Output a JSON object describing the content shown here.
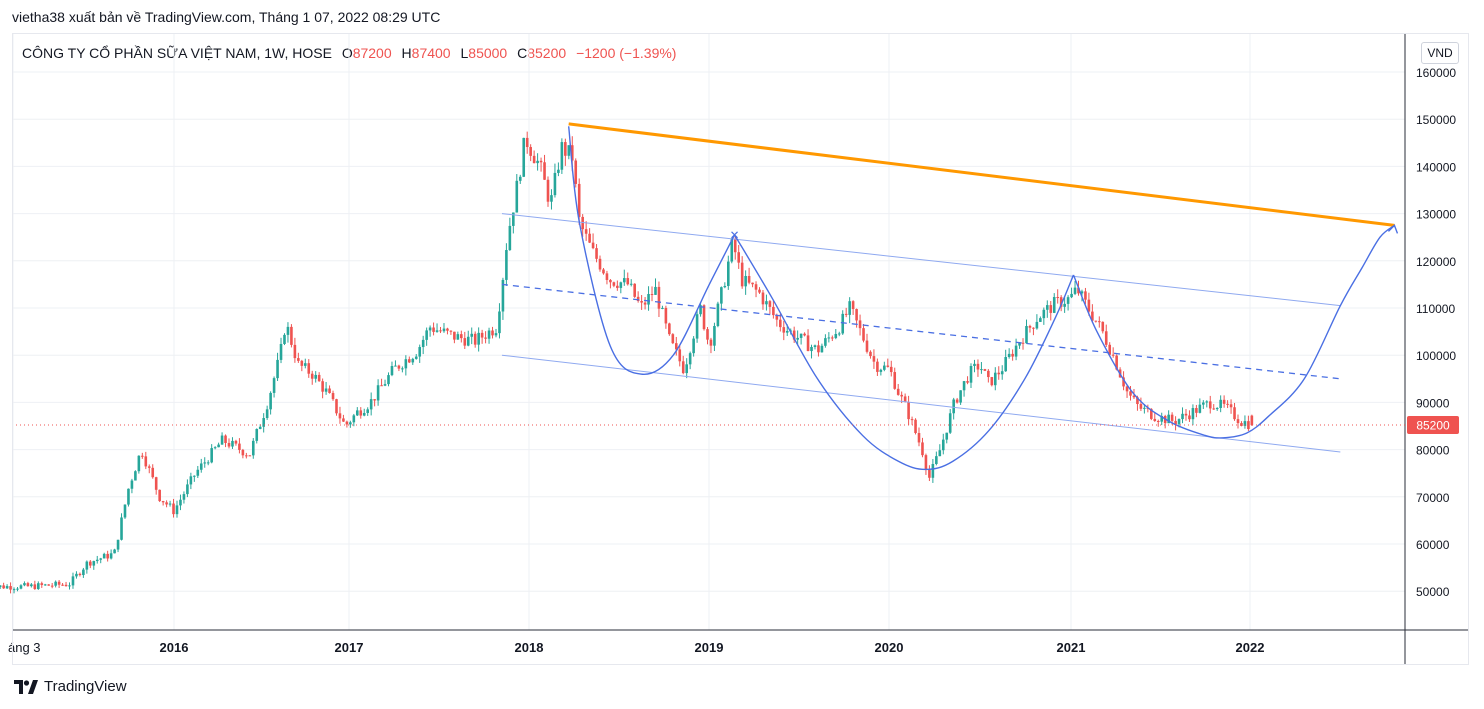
{
  "header": {
    "publisher_line": "vietha38 xuất bản về TradingView.com, Tháng 1 07, 2022 08:29 UTC"
  },
  "legend": {
    "symbol": "CÔNG TY CỔ PHẦN SỮA VIỆT NAM, 1W, HOSE",
    "o_label": "O",
    "o_value": "87200",
    "h_label": "H",
    "h_value": "87400",
    "l_label": "L",
    "l_value": "85000",
    "c_label": "C",
    "c_value": "85200",
    "change": "−1200 (−1.39%)"
  },
  "currency": "VND",
  "footer": {
    "brand": "TradingView",
    "logo_icon": "tradingview-logo-icon"
  },
  "colors": {
    "up": "#26a69a",
    "down": "#ef5350",
    "trend": "#ff9800",
    "pattern": "#4a6fe3",
    "channel": "#8fa9f0",
    "last_price_bg": "#ef5350"
  },
  "chart_data": {
    "type": "candlestick",
    "interval": "1W",
    "y_axis_ticks": [
      50000,
      60000,
      70000,
      80000,
      90000,
      100000,
      110000,
      120000,
      130000,
      140000,
      150000,
      160000
    ],
    "x_axis_ticks": [
      "áng 3",
      "2016",
      "2017",
      "2018",
      "2019",
      "2020",
      "2021",
      "2022"
    ],
    "ylim": [
      40000,
      163000
    ],
    "grid": true,
    "last_price": 85200,
    "last_price_label": "85200",
    "ohlc_last": {
      "open": 87200,
      "high": 87400,
      "low": 85000,
      "close": 85200,
      "change": -1200,
      "change_pct": -1.39
    },
    "price_path": [
      [
        2015.22,
        51000
      ],
      [
        2015.45,
        51500
      ],
      [
        2015.55,
        56000
      ],
      [
        2015.7,
        58000
      ],
      [
        2015.78,
        72000
      ],
      [
        2015.85,
        80000
      ],
      [
        2015.95,
        70000
      ],
      [
        2016.03,
        67000
      ],
      [
        2016.15,
        75000
      ],
      [
        2016.3,
        82000
      ],
      [
        2016.45,
        79000
      ],
      [
        2016.55,
        90000
      ],
      [
        2016.62,
        100000
      ],
      [
        2016.65,
        107000
      ],
      [
        2016.72,
        98000
      ],
      [
        2016.8,
        96000
      ],
      [
        2016.88,
        92000
      ],
      [
        2016.98,
        85000
      ],
      [
        2017.05,
        88000
      ],
      [
        2017.12,
        90000
      ],
      [
        2017.25,
        97000
      ],
      [
        2017.38,
        101000
      ],
      [
        2017.45,
        106000
      ],
      [
        2017.58,
        104000
      ],
      [
        2017.7,
        103000
      ],
      [
        2017.82,
        106000
      ],
      [
        2017.85,
        115000
      ],
      [
        2017.88,
        125000
      ],
      [
        2017.93,
        135000
      ],
      [
        2017.98,
        146000
      ],
      [
        2018.06,
        140000
      ],
      [
        2018.12,
        132000
      ],
      [
        2018.18,
        144000
      ],
      [
        2018.24,
        142000
      ],
      [
        2018.28,
        128000
      ],
      [
        2018.35,
        122000
      ],
      [
        2018.45,
        116000
      ],
      [
        2018.55,
        115000
      ],
      [
        2018.62,
        110000
      ],
      [
        2018.7,
        114000
      ],
      [
        2018.78,
        103000
      ],
      [
        2018.86,
        97000
      ],
      [
        2018.95,
        110000
      ],
      [
        2019.0,
        102000
      ],
      [
        2019.08,
        115000
      ],
      [
        2019.13,
        124000
      ],
      [
        2019.18,
        116000
      ],
      [
        2019.28,
        113000
      ],
      [
        2019.38,
        107000
      ],
      [
        2019.48,
        104000
      ],
      [
        2019.6,
        101000
      ],
      [
        2019.72,
        106000
      ],
      [
        2019.78,
        110000
      ],
      [
        2019.85,
        104000
      ],
      [
        2019.92,
        98000
      ],
      [
        2020.0,
        97000
      ],
      [
        2020.05,
        92000
      ],
      [
        2020.1,
        88000
      ],
      [
        2020.18,
        80000
      ],
      [
        2020.22,
        74000
      ],
      [
        2020.28,
        80000
      ],
      [
        2020.36,
        90000
      ],
      [
        2020.44,
        96000
      ],
      [
        2020.5,
        98000
      ],
      [
        2020.55,
        94000
      ],
      [
        2020.62,
        97000
      ],
      [
        2020.72,
        103000
      ],
      [
        2020.82,
        108000
      ],
      [
        2020.92,
        111000
      ],
      [
        2021.0,
        112000
      ],
      [
        2021.04,
        114000
      ],
      [
        2021.1,
        110000
      ],
      [
        2021.18,
        105000
      ],
      [
        2021.25,
        99000
      ],
      [
        2021.32,
        92000
      ],
      [
        2021.38,
        89000
      ],
      [
        2021.48,
        87000
      ],
      [
        2021.58,
        86000
      ],
      [
        2021.68,
        88000
      ],
      [
        2021.78,
        90000
      ],
      [
        2021.86,
        89000
      ],
      [
        2021.95,
        86000
      ],
      [
        2022.02,
        85200
      ]
    ],
    "drawings": {
      "trendline": {
        "from": [
          2018.22,
          149000
        ],
        "to": [
          2022.8,
          127500
        ]
      },
      "channel_upper": {
        "from": [
          2017.85,
          130000
        ],
        "to": [
          2022.5,
          110500
        ]
      },
      "channel_mid": {
        "from": [
          2017.85,
          115000
        ],
        "to": [
          2022.5,
          95000
        ]
      },
      "channel_lower": {
        "from": [
          2017.85,
          100000
        ],
        "to": [
          2022.5,
          79500
        ]
      },
      "cup_arcs": [
        [
          [
            2018.22,
            148500
          ],
          [
            2018.28,
            128000
          ],
          [
            2018.45,
            102000
          ],
          [
            2018.62,
            96000
          ],
          [
            2018.8,
            100000
          ],
          [
            2019.0,
            115000
          ],
          [
            2019.14,
            125500
          ]
        ],
        [
          [
            2019.14,
            125500
          ],
          [
            2019.35,
            112000
          ],
          [
            2019.6,
            95000
          ],
          [
            2019.85,
            83000
          ],
          [
            2020.05,
            77500
          ],
          [
            2020.2,
            75800
          ],
          [
            2020.35,
            77500
          ],
          [
            2020.55,
            84000
          ],
          [
            2020.75,
            95000
          ],
          [
            2020.92,
            108000
          ],
          [
            2021.02,
            117000
          ]
        ],
        [
          [
            2021.02,
            117000
          ],
          [
            2021.15,
            105000
          ],
          [
            2021.35,
            92000
          ],
          [
            2021.55,
            86000
          ],
          [
            2021.75,
            83000
          ],
          [
            2021.85,
            82500
          ],
          [
            2021.98,
            83500
          ],
          [
            2022.1,
            87000
          ],
          [
            2022.3,
            95000
          ],
          [
            2022.5,
            110500
          ],
          [
            2022.62,
            118500
          ],
          [
            2022.72,
            125000
          ],
          [
            2022.8,
            127500
          ]
        ]
      ]
    }
  }
}
